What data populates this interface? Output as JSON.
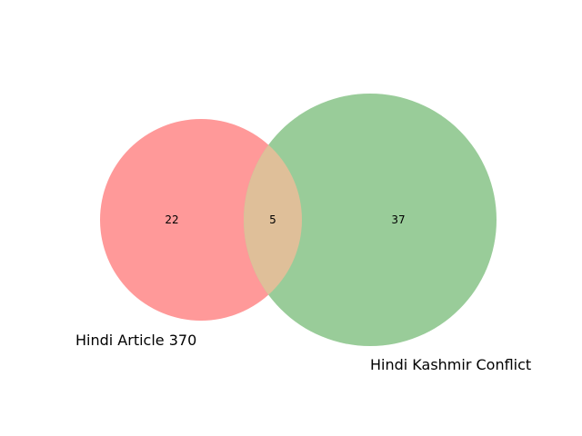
{
  "chart_data": {
    "type": "venn",
    "sets": [
      {
        "label": "Hindi Article 370",
        "only_count": "22",
        "color": "#ff9999"
      },
      {
        "label": "Hindi Kashmir Conflict",
        "only_count": "37",
        "color": "#99cc99"
      }
    ],
    "intersection": {
      "count": "5",
      "color": "#dfbf99"
    }
  }
}
